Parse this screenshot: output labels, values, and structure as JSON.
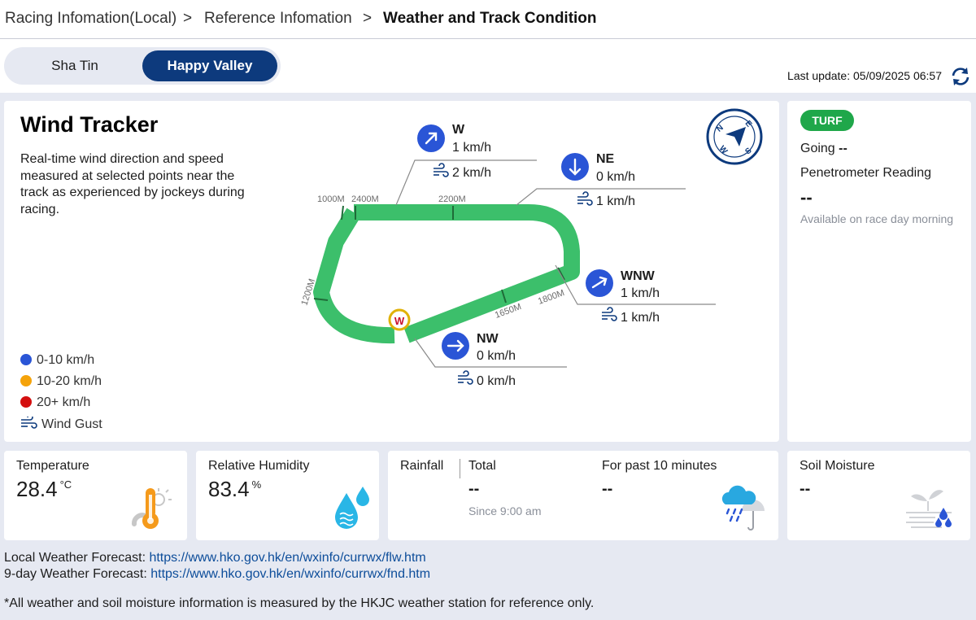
{
  "breadcrumb": {
    "items": [
      "Racing Infomation(Local)",
      "Reference Infomation",
      "Weather and Track Condition"
    ],
    "separator": ">"
  },
  "venues": {
    "inactive": "Sha Tin",
    "active": "Happy Valley"
  },
  "last_update": "Last update: 05/09/2025 06:57",
  "wind_tracker": {
    "title": "Wind Tracker",
    "description": "Real-time wind direction and speed measured at selected points near the track as experienced by jockeys during racing.",
    "stations": [
      {
        "dir": "W",
        "speed": "1 km/h",
        "gust": "2 km/h",
        "icon": "arrow-up-right-icon"
      },
      {
        "dir": "NE",
        "speed": "0 km/h",
        "gust": "1 km/h",
        "icon": "arrow-down-icon"
      },
      {
        "dir": "WNW",
        "speed": "1 km/h",
        "gust": "1 km/h",
        "icon": "arrow-up-right-icon"
      },
      {
        "dir": "NW",
        "speed": "0 km/h",
        "gust": "0 km/h",
        "icon": "arrow-right-icon"
      }
    ],
    "track_marks": [
      "1000M",
      "2400M",
      "2200M",
      "1200M",
      "1650M",
      "1800M"
    ],
    "winning_post": "W",
    "compass": [
      "N",
      "E",
      "S",
      "W"
    ],
    "legend": [
      {
        "label": "0-10 km/h",
        "color": "#2a55d6"
      },
      {
        "label": "10-20 km/h",
        "color": "#f5a30a"
      },
      {
        "label": "20+ km/h",
        "color": "#d40f0f"
      },
      {
        "label": "Wind Gust",
        "icon": "wind-gust-icon"
      }
    ]
  },
  "turf": {
    "badge": "TURF",
    "going_label": "Going",
    "going_value": "--",
    "penetrometer_label": "Penetrometer Reading",
    "penetrometer_value": "--",
    "note": "Available on race day morning"
  },
  "temperature": {
    "label": "Temperature",
    "value": "28.4",
    "unit": "°C"
  },
  "humidity": {
    "label": "Relative Humidity",
    "value": "83.4",
    "unit": "%"
  },
  "rainfall": {
    "label": "Rainfall",
    "total_label": "Total",
    "total_value": "--",
    "since": "Since 9:00 am",
    "past_label": "For past 10 minutes",
    "past_value": "--"
  },
  "soil": {
    "label": "Soil Moisture",
    "value": "--"
  },
  "footer": {
    "local_label": "Local Weather Forecast: ",
    "local_url": "https://www.hko.gov.hk/en/wxinfo/currwx/flw.htm",
    "nine_day_label": "9-day Weather Forecast: ",
    "nine_day_url": "https://www.hko.gov.hk/en/wxinfo/currwx/fnd.htm",
    "disclaimer": "*All weather and soil moisture information is measured by the HKJC weather station for reference only."
  }
}
